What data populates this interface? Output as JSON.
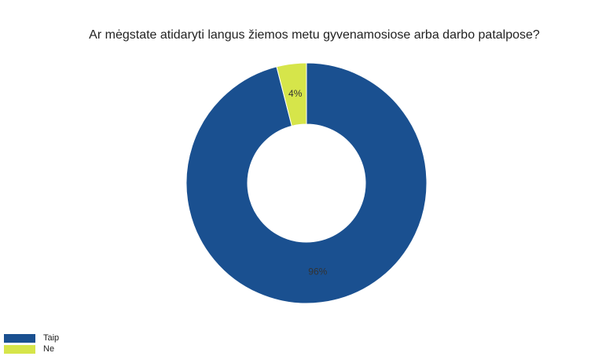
{
  "chart_data": {
    "type": "pie",
    "donut": true,
    "title": "Ar mėgstate atidaryti langus žiemos metu gyvenamosiose arba darbo patalpose?",
    "categories": [
      "Taip",
      "Ne"
    ],
    "values": [
      96,
      4
    ],
    "labels": [
      "96%",
      "4%"
    ],
    "colors": [
      "#1a5090",
      "#d6e54a"
    ],
    "legend_position": "bottom-left"
  }
}
